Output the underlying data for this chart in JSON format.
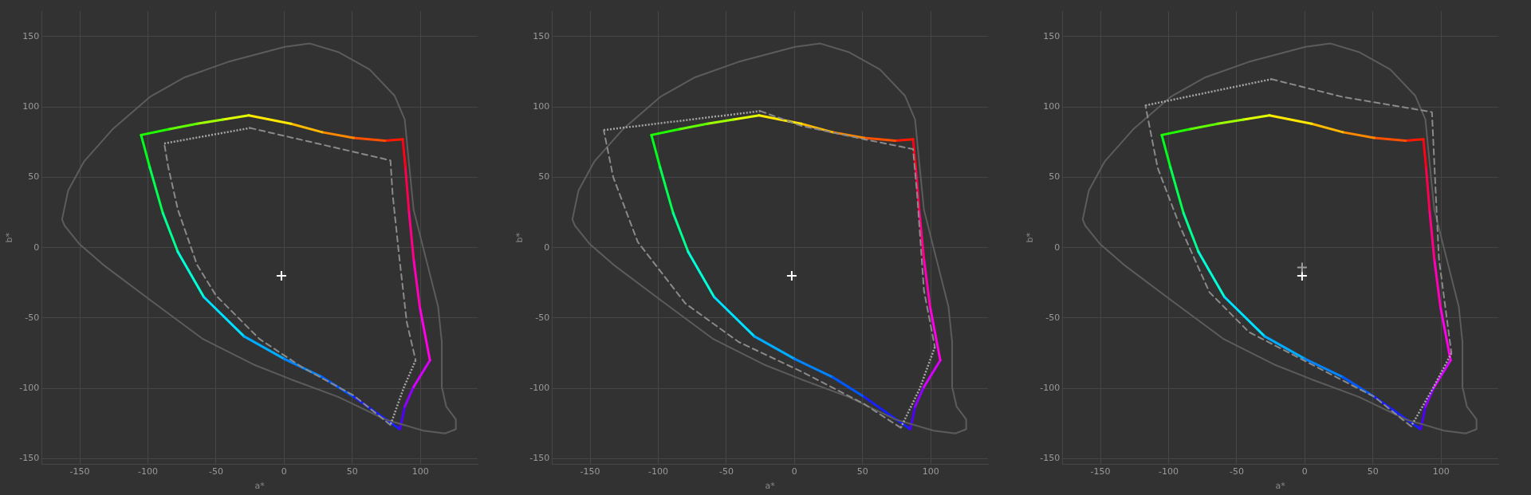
{
  "chart_data": [
    {
      "type": "line",
      "xlabel": "a*",
      "ylabel": "b*",
      "xlim": [
        -178,
        142
      ],
      "ylim": [
        -154,
        168
      ],
      "xticks": [
        -150,
        -100,
        -50,
        0,
        50,
        100
      ],
      "yticks": [
        -150,
        -100,
        -50,
        0,
        50,
        100,
        150
      ],
      "grid": true,
      "legend": false,
      "series": [
        {
          "color": "#5c5c5c",
          "line_style": "solid",
          "x": [
            -163,
            -158.5,
            -147,
            -126,
            -98.6,
            -73,
            -41,
            0.5,
            19,
            39.6,
            62.7,
            81,
            88.5,
            91.5,
            95,
            104,
            113,
            115.7,
            115.7,
            119,
            126,
            126,
            118,
            102,
            74,
            39.6,
            5,
            -22.6,
            -59.5,
            -98.6,
            -133,
            -150.5,
            -161,
            -163
          ],
          "values": [
            20,
            40.6,
            61,
            84,
            107,
            121,
            132,
            142.7,
            145,
            139,
            126.6,
            108,
            91,
            61,
            27,
            -7.6,
            -42,
            -67,
            -99,
            -113,
            -122,
            -129,
            -132,
            -130,
            -122,
            -106,
            -93.6,
            -83,
            -65,
            -37,
            -12,
            2.8,
            15.4,
            20
          ]
        },
        {
          "color": "#20ff00",
          "x": [
            -105,
            -85
          ],
          "values": [
            80,
            84
          ]
        },
        {
          "color": "#60ff00",
          "x": [
            -85,
            -64
          ],
          "values": [
            84,
            88
          ]
        },
        {
          "color": "#a0ff00",
          "x": [
            -64,
            -45
          ],
          "values": [
            88,
            91
          ]
        },
        {
          "color": "#e0ff00",
          "x": [
            -45,
            -26
          ],
          "values": [
            91,
            94
          ]
        },
        {
          "color": "#ffe800",
          "x": [
            -26,
            5
          ],
          "values": [
            94,
            88
          ]
        },
        {
          "color": "#ffb800",
          "x": [
            5,
            28
          ],
          "values": [
            88,
            82
          ]
        },
        {
          "color": "#ff8800",
          "x": [
            28,
            51
          ],
          "values": [
            82,
            78
          ]
        },
        {
          "color": "#ff5000",
          "x": [
            51,
            74
          ],
          "values": [
            78,
            76
          ]
        },
        {
          "color": "#ff1800",
          "x": [
            74,
            87
          ],
          "values": [
            76,
            77
          ]
        },
        {
          "color": "#ff0018",
          "x": [
            87,
            89
          ],
          "values": [
            77,
            57
          ]
        },
        {
          "color": "#ff0050",
          "x": [
            89,
            91.5
          ],
          "values": [
            57,
            27
          ]
        },
        {
          "color": "#ff0088",
          "x": [
            91.5,
            95
          ],
          "values": [
            27,
            -8
          ]
        },
        {
          "color": "#ff00b8",
          "x": [
            95,
            99.5
          ],
          "values": [
            -8,
            -42
          ]
        },
        {
          "color": "#ff00e8",
          "x": [
            99.5,
            107
          ],
          "values": [
            -42,
            -80
          ]
        },
        {
          "color": "#d800ff",
          "x": [
            107,
            95
          ],
          "values": [
            -80,
            -99
          ]
        },
        {
          "color": "#9000ff",
          "x": [
            95,
            88.5
          ],
          "values": [
            -99,
            -113
          ]
        },
        {
          "color": "#5000ff",
          "x": [
            88.5,
            85
          ],
          "values": [
            -113,
            -129
          ]
        },
        {
          "color": "#1820ff",
          "x": [
            85,
            51
          ],
          "values": [
            -129,
            -106
          ]
        },
        {
          "color": "#0058ff",
          "x": [
            51,
            28
          ],
          "values": [
            -106,
            -92
          ]
        },
        {
          "color": "#0084ff",
          "x": [
            28,
            0
          ],
          "values": [
            -92,
            -79
          ]
        },
        {
          "color": "#00acff",
          "x": [
            0,
            -29.5
          ],
          "values": [
            -79,
            -63
          ]
        },
        {
          "color": "#00e0ff",
          "x": [
            -29.5,
            -59
          ],
          "values": [
            -63,
            -35
          ]
        },
        {
          "color": "#00ffd8",
          "x": [
            -59,
            -78
          ],
          "values": [
            -35,
            -3
          ]
        },
        {
          "color": "#00ff90",
          "x": [
            -78,
            -89
          ],
          "values": [
            -3,
            24.5
          ]
        },
        {
          "color": "#00ff50",
          "x": [
            -89,
            -98.6
          ],
          "values": [
            24.5,
            57
          ]
        },
        {
          "color": "#00ff18",
          "x": [
            -98.6,
            -105
          ],
          "values": [
            57,
            80
          ]
        },
        {
          "color": "#8a8a8a",
          "line_style": "dashed",
          "x": [
            -25,
            78,
            79.6,
            84.6,
            90,
            96.5,
            null,
            78,
            51,
            14,
            -18,
            -50,
            -64,
            -78,
            -85,
            -88
          ],
          "values": [
            85,
            62,
            38,
            -7.6,
            -53,
            -80,
            null,
            -126,
            -105,
            -85.5,
            -65,
            -34,
            -12,
            27,
            57,
            74
          ]
        },
        {
          "color": "#a6a6a6",
          "line_style": "dotted",
          "x": [
            96.5,
            88,
            78
          ],
          "values": [
            -80,
            -99,
            -126
          ]
        },
        {
          "color": "#a6a6a6",
          "line_style": "dotted",
          "x": [
            -88,
            -25
          ],
          "values": [
            74,
            85
          ]
        },
        {
          "type": "scatter",
          "color": "#ffffff",
          "marker": "cross",
          "x": [
            -2
          ],
          "values": [
            -20
          ]
        }
      ]
    },
    {
      "type": "line",
      "xlabel": "a*",
      "ylabel": "b*",
      "xlim": [
        -178,
        142
      ],
      "ylim": [
        -154,
        168
      ],
      "xticks": [
        -150,
        -100,
        -50,
        0,
        50,
        100
      ],
      "yticks": [
        -150,
        -100,
        -50,
        0,
        50,
        100,
        150
      ],
      "grid": true,
      "legend": false,
      "series": [
        {
          "color": "#5c5c5c",
          "line_style": "solid",
          "x": [
            -163,
            -158.5,
            -147,
            -126,
            -98.6,
            -73,
            -41,
            0.5,
            19,
            39.6,
            62.7,
            81,
            88.5,
            91.5,
            95,
            104,
            113,
            115.7,
            115.7,
            119,
            126,
            126,
            118,
            102,
            74,
            39.6,
            5,
            -22.6,
            -59.5,
            -98.6,
            -133,
            -150.5,
            -161,
            -163
          ],
          "values": [
            20,
            40.6,
            61,
            84,
            107,
            121,
            132,
            142.7,
            145,
            139,
            126.6,
            108,
            91,
            61,
            27,
            -7.6,
            -42,
            -67,
            -99,
            -113,
            -122,
            -129,
            -132,
            -130,
            -122,
            -106,
            -93.6,
            -83,
            -65,
            -37,
            -12,
            2.8,
            15.4,
            20
          ]
        },
        {
          "color": "#20ff00",
          "x": [
            -105,
            -85
          ],
          "values": [
            80,
            84
          ]
        },
        {
          "color": "#60ff00",
          "x": [
            -85,
            -64
          ],
          "values": [
            84,
            88
          ]
        },
        {
          "color": "#a0ff00",
          "x": [
            -64,
            -45
          ],
          "values": [
            88,
            91
          ]
        },
        {
          "color": "#e0ff00",
          "x": [
            -45,
            -26
          ],
          "values": [
            91,
            94
          ]
        },
        {
          "color": "#ffe800",
          "x": [
            -26,
            5
          ],
          "values": [
            94,
            88
          ]
        },
        {
          "color": "#ffb800",
          "x": [
            5,
            28
          ],
          "values": [
            88,
            82
          ]
        },
        {
          "color": "#ff8800",
          "x": [
            28,
            51
          ],
          "values": [
            82,
            78
          ]
        },
        {
          "color": "#ff5000",
          "x": [
            51,
            74
          ],
          "values": [
            78,
            76
          ]
        },
        {
          "color": "#ff1800",
          "x": [
            74,
            87
          ],
          "values": [
            76,
            77
          ]
        },
        {
          "color": "#ff0018",
          "x": [
            87,
            89
          ],
          "values": [
            77,
            57
          ]
        },
        {
          "color": "#ff0050",
          "x": [
            89,
            91.5
          ],
          "values": [
            57,
            27
          ]
        },
        {
          "color": "#ff0088",
          "x": [
            91.5,
            95
          ],
          "values": [
            27,
            -8
          ]
        },
        {
          "color": "#ff00b8",
          "x": [
            95,
            99.5
          ],
          "values": [
            -8,
            -42
          ]
        },
        {
          "color": "#ff00e8",
          "x": [
            99.5,
            107
          ],
          "values": [
            -42,
            -80
          ]
        },
        {
          "color": "#d800ff",
          "x": [
            107,
            95
          ],
          "values": [
            -80,
            -99
          ]
        },
        {
          "color": "#9000ff",
          "x": [
            95,
            88.5
          ],
          "values": [
            -99,
            -113
          ]
        },
        {
          "color": "#5000ff",
          "x": [
            88.5,
            85
          ],
          "values": [
            -113,
            -129
          ]
        },
        {
          "color": "#1820ff",
          "x": [
            85,
            51
          ],
          "values": [
            -129,
            -106
          ]
        },
        {
          "color": "#0058ff",
          "x": [
            51,
            28
          ],
          "values": [
            -106,
            -92
          ]
        },
        {
          "color": "#0084ff",
          "x": [
            28,
            0
          ],
          "values": [
            -92,
            -79
          ]
        },
        {
          "color": "#00acff",
          "x": [
            0,
            -29.5
          ],
          "values": [
            -79,
            -63
          ]
        },
        {
          "color": "#00e0ff",
          "x": [
            -29.5,
            -59
          ],
          "values": [
            -63,
            -35
          ]
        },
        {
          "color": "#00ffd8",
          "x": [
            -59,
            -78
          ],
          "values": [
            -35,
            -3
          ]
        },
        {
          "color": "#00ff90",
          "x": [
            -78,
            -89
          ],
          "values": [
            -3,
            24.5
          ]
        },
        {
          "color": "#00ff50",
          "x": [
            -89,
            -98.6
          ],
          "values": [
            24.5,
            57
          ]
        },
        {
          "color": "#00ff18",
          "x": [
            -98.6,
            -105
          ],
          "values": [
            57,
            80
          ]
        },
        {
          "color": "#8a8a8a",
          "line_style": "dashed",
          "x": [
            -25,
            5,
            51,
            87,
            90,
            95,
            103,
            null,
            78,
            51,
            5,
            -41,
            -80,
            -115,
            -133,
            -140
          ],
          "values": [
            97,
            86.5,
            77,
            70,
            38,
            -30.5,
            -70.6,
            null,
            -128,
            -111,
            -88,
            -67,
            -39.7,
            4,
            50,
            83.5
          ]
        },
        {
          "color": "#a6a6a6",
          "line_style": "dotted",
          "x": [
            103,
            92,
            78
          ],
          "values": [
            -70.6,
            -100,
            -128
          ]
        },
        {
          "color": "#a6a6a6",
          "line_style": "dotted",
          "x": [
            -140,
            -25
          ],
          "values": [
            83.5,
            97
          ]
        },
        {
          "type": "scatter",
          "color": "#ffffff",
          "marker": "cross",
          "x": [
            -2
          ],
          "values": [
            -20
          ]
        }
      ]
    },
    {
      "type": "line",
      "xlabel": "a*",
      "ylabel": "b*",
      "xlim": [
        -178,
        142
      ],
      "ylim": [
        -154,
        168
      ],
      "xticks": [
        -150,
        -100,
        -50,
        0,
        50,
        100
      ],
      "yticks": [
        -150,
        -100,
        -50,
        0,
        50,
        100,
        150
      ],
      "grid": true,
      "legend": false,
      "series": [
        {
          "color": "#5c5c5c",
          "line_style": "solid",
          "x": [
            -163,
            -158.5,
            -147,
            -126,
            -98.6,
            -73,
            -41,
            0.5,
            19,
            39.6,
            62.7,
            81,
            88.5,
            91.5,
            95,
            104,
            113,
            115.7,
            115.7,
            119,
            126,
            126,
            118,
            102,
            74,
            39.6,
            5,
            -22.6,
            -59.5,
            -98.6,
            -133,
            -150.5,
            -161,
            -163
          ],
          "values": [
            20,
            40.6,
            61,
            84,
            107,
            121,
            132,
            142.7,
            145,
            139,
            126.6,
            108,
            91,
            61,
            27,
            -7.6,
            -42,
            -67,
            -99,
            -113,
            -122,
            -129,
            -132,
            -130,
            -122,
            -106,
            -93.6,
            -83,
            -65,
            -37,
            -12,
            2.8,
            15.4,
            20
          ]
        },
        {
          "color": "#20ff00",
          "x": [
            -105,
            -85
          ],
          "values": [
            80,
            84
          ]
        },
        {
          "color": "#60ff00",
          "x": [
            -85,
            -64
          ],
          "values": [
            84,
            88
          ]
        },
        {
          "color": "#a0ff00",
          "x": [
            -64,
            -45
          ],
          "values": [
            88,
            91
          ]
        },
        {
          "color": "#e0ff00",
          "x": [
            -45,
            -26
          ],
          "values": [
            91,
            94
          ]
        },
        {
          "color": "#ffe800",
          "x": [
            -26,
            5
          ],
          "values": [
            94,
            88
          ]
        },
        {
          "color": "#ffb800",
          "x": [
            5,
            28
          ],
          "values": [
            88,
            82
          ]
        },
        {
          "color": "#ff8800",
          "x": [
            28,
            51
          ],
          "values": [
            82,
            78
          ]
        },
        {
          "color": "#ff5000",
          "x": [
            51,
            74
          ],
          "values": [
            78,
            76
          ]
        },
        {
          "color": "#ff1800",
          "x": [
            74,
            87
          ],
          "values": [
            76,
            77
          ]
        },
        {
          "color": "#ff0018",
          "x": [
            87,
            89
          ],
          "values": [
            77,
            57
          ]
        },
        {
          "color": "#ff0050",
          "x": [
            89,
            91.5
          ],
          "values": [
            57,
            27
          ]
        },
        {
          "color": "#ff0088",
          "x": [
            91.5,
            95
          ],
          "values": [
            27,
            -8
          ]
        },
        {
          "color": "#ff00b8",
          "x": [
            95,
            99.5
          ],
          "values": [
            -8,
            -42
          ]
        },
        {
          "color": "#ff00e8",
          "x": [
            99.5,
            107
          ],
          "values": [
            -42,
            -80
          ]
        },
        {
          "color": "#d800ff",
          "x": [
            107,
            95
          ],
          "values": [
            -80,
            -99
          ]
        },
        {
          "color": "#9000ff",
          "x": [
            95,
            88.5
          ],
          "values": [
            -99,
            -113
          ]
        },
        {
          "color": "#5000ff",
          "x": [
            88.5,
            85
          ],
          "values": [
            -113,
            -129
          ]
        },
        {
          "color": "#1820ff",
          "x": [
            85,
            51
          ],
          "values": [
            -129,
            -106
          ]
        },
        {
          "color": "#0058ff",
          "x": [
            51,
            28
          ],
          "values": [
            -106,
            -92
          ]
        },
        {
          "color": "#0084ff",
          "x": [
            28,
            0
          ],
          "values": [
            -92,
            -79
          ]
        },
        {
          "color": "#00acff",
          "x": [
            0,
            -29.5
          ],
          "values": [
            -79,
            -63
          ]
        },
        {
          "color": "#00e0ff",
          "x": [
            -29.5,
            -59
          ],
          "values": [
            -63,
            -35
          ]
        },
        {
          "color": "#00ffd8",
          "x": [
            -59,
            -78
          ],
          "values": [
            -35,
            -3
          ]
        },
        {
          "color": "#00ff90",
          "x": [
            -78,
            -89
          ],
          "values": [
            -3,
            24.5
          ]
        },
        {
          "color": "#00ff50",
          "x": [
            -89,
            -98.6
          ],
          "values": [
            24.5,
            57
          ]
        },
        {
          "color": "#00ff18",
          "x": [
            -98.6,
            -105
          ],
          "values": [
            57,
            80
          ]
        },
        {
          "color": "#8a8a8a",
          "line_style": "dashed",
          "x": [
            -24.4,
            28,
            93.3,
            95,
            98.4,
            107.6,
            null,
            78,
            51,
            5,
            -41,
            -70,
            -91.7,
            -108,
            -117
          ],
          "values": [
            119.7,
            107,
            96.3,
            61,
            -7.6,
            -75,
            null,
            -127,
            -106,
            -83,
            -60,
            -31.7,
            15.4,
            56.7,
            101
          ]
        },
        {
          "color": "#a6a6a6",
          "line_style": "dotted",
          "x": [
            107.6,
            94,
            78
          ],
          "values": [
            -75,
            -100,
            -127
          ]
        },
        {
          "color": "#a6a6a6",
          "line_style": "dotted",
          "x": [
            -117,
            -24.4
          ],
          "values": [
            101,
            119.7
          ]
        },
        {
          "type": "scatter",
          "color": "#9c9c9c",
          "marker": "cross",
          "x": [
            -2
          ],
          "values": [
            -14
          ]
        },
        {
          "type": "scatter",
          "color": "#ffffff",
          "marker": "cross",
          "x": [
            -2
          ],
          "values": [
            -20
          ]
        }
      ]
    }
  ]
}
